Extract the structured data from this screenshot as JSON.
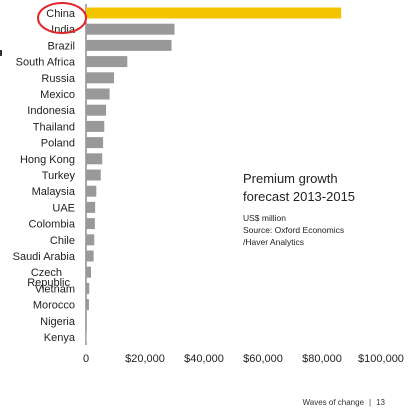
{
  "chart_data": {
    "type": "bar",
    "orientation": "horizontal",
    "categories": [
      "China",
      "India",
      "Brazil",
      "South Africa",
      "Russia",
      "Mexico",
      "Indonesia",
      "Thailand",
      "Poland",
      "Hong Kong",
      "Turkey",
      "Malaysia",
      "UAE",
      "Colombia",
      "Chile",
      "Saudi Arabia",
      "Czech Republic",
      "Vietnam",
      "Morocco",
      "Nigeria",
      "Kenya"
    ],
    "values": [
      86500,
      30000,
      29000,
      14000,
      9500,
      8000,
      6800,
      6200,
      5800,
      5500,
      5000,
      3500,
      3100,
      3000,
      2800,
      2600,
      1700,
      1100,
      1000,
      300,
      200
    ],
    "highlight_index": 0,
    "colors": {
      "bar": "#999999",
      "highlight": "#f5c400",
      "circle": "#e0262b",
      "axis": "#555555"
    },
    "xlim": [
      0,
      100000
    ],
    "xticks": [
      "0",
      "$20,000",
      "$40,000",
      "$60,000",
      "$80,000",
      "$100,000"
    ],
    "xtick_values": [
      0,
      20000,
      40000,
      60000,
      80000,
      100000
    ],
    "title_lines": [
      "Premium growth",
      "forecast 2013-2015"
    ],
    "source_lines": [
      "US$ million",
      "Source: Oxford Economics",
      "/Haver Analytics"
    ],
    "grid": false
  },
  "footer": {
    "title": "Waves of change",
    "separator": "|",
    "page": "13"
  }
}
